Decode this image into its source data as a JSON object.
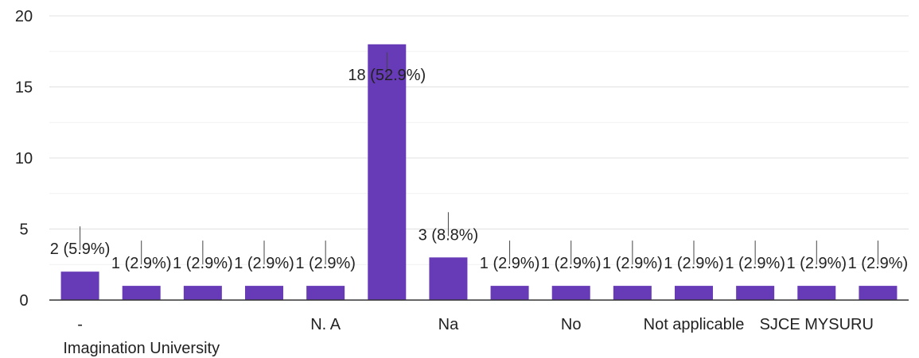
{
  "chart_data": {
    "type": "bar",
    "categories": [
      "-",
      "Imagination University",
      "",
      "",
      "N. A",
      "",
      "Na",
      "",
      "No",
      "",
      "Not applicable",
      "",
      "SJCE MYSURU",
      ""
    ],
    "values": [
      2,
      1,
      1,
      1,
      1,
      18,
      3,
      1,
      1,
      1,
      1,
      1,
      1,
      1
    ],
    "data_labels": [
      "2 (5.9%)",
      "1 (2.9%)",
      "1 (2.9%)",
      "1 (2.9%)",
      "1 (2.9%)",
      "18 (52.9%)",
      "3 (8.8%)",
      "1 (2.9%)",
      "1 (2.9%)",
      "1 (2.9%)",
      "1 (2.9%)",
      "1 (2.9%)",
      "1 (2.9%)",
      "1 (2.9%)"
    ],
    "yticks": [
      "0",
      "5",
      "10",
      "15",
      "20"
    ],
    "ylim": [
      0,
      20
    ],
    "minor_gridlines": true,
    "bar_color": "#673ab7",
    "title": "",
    "xlabel": "",
    "ylabel": ""
  }
}
